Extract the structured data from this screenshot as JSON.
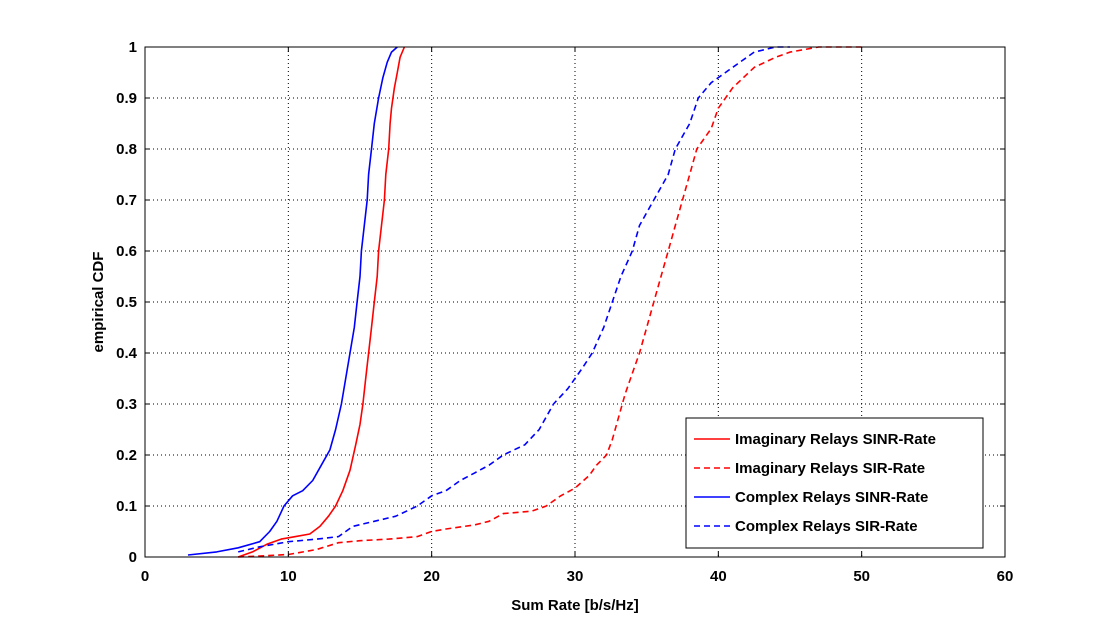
{
  "chart_data": {
    "type": "line",
    "title": "",
    "xlabel": "Sum Rate [b/s/Hz]",
    "ylabel": "empirical CDF",
    "xlim": [
      0,
      60
    ],
    "ylim": [
      0,
      1
    ],
    "xticks": [
      "0",
      "10",
      "20",
      "30",
      "40",
      "50",
      "60"
    ],
    "yticks": [
      "0",
      "0.1",
      "0.2",
      "0.3",
      "0.4",
      "0.5",
      "0.6",
      "0.7",
      "0.8",
      "0.9",
      "1"
    ],
    "grid": true,
    "legend_position": "bottom-right",
    "series": [
      {
        "name": "Imaginary Relays SINR-Rate",
        "color": "#ff0000",
        "style": "solid",
        "points": [
          [
            6.5,
            0
          ],
          [
            7.5,
            0.01
          ],
          [
            8.5,
            0.025
          ],
          [
            9.5,
            0.035
          ],
          [
            10.5,
            0.04
          ],
          [
            11.5,
            0.045
          ],
          [
            12.2,
            0.06
          ],
          [
            12.8,
            0.08
          ],
          [
            13.3,
            0.1
          ],
          [
            13.8,
            0.13
          ],
          [
            14.3,
            0.17
          ],
          [
            14.7,
            0.22
          ],
          [
            15.0,
            0.26
          ],
          [
            15.2,
            0.3
          ],
          [
            15.4,
            0.35
          ],
          [
            15.6,
            0.4
          ],
          [
            15.8,
            0.45
          ],
          [
            16.0,
            0.5
          ],
          [
            16.2,
            0.55
          ],
          [
            16.3,
            0.6
          ],
          [
            16.5,
            0.65
          ],
          [
            16.7,
            0.7
          ],
          [
            16.8,
            0.75
          ],
          [
            17.0,
            0.8
          ],
          [
            17.1,
            0.85
          ],
          [
            17.2,
            0.88
          ],
          [
            17.4,
            0.92
          ],
          [
            17.6,
            0.95
          ],
          [
            17.8,
            0.98
          ],
          [
            18.1,
            1
          ]
        ]
      },
      {
        "name": "Imaginary Relays SIR-Rate",
        "color": "#ff0000",
        "style": "dashed",
        "points": [
          [
            6.5,
            0
          ],
          [
            8,
            0.002
          ],
          [
            10,
            0.005
          ],
          [
            12,
            0.015
          ],
          [
            13.5,
            0.028
          ],
          [
            15,
            0.032
          ],
          [
            17,
            0.035
          ],
          [
            19,
            0.04
          ],
          [
            20,
            0.05
          ],
          [
            21,
            0.055
          ],
          [
            23,
            0.063
          ],
          [
            24,
            0.07
          ],
          [
            25,
            0.085
          ],
          [
            27,
            0.09
          ],
          [
            28,
            0.1
          ],
          [
            29,
            0.12
          ],
          [
            30,
            0.135
          ],
          [
            31,
            0.16
          ],
          [
            31.5,
            0.18
          ],
          [
            32.2,
            0.2
          ],
          [
            32.6,
            0.23
          ],
          [
            33,
            0.27
          ],
          [
            33.5,
            0.32
          ],
          [
            34,
            0.36
          ],
          [
            34.5,
            0.4
          ],
          [
            35,
            0.45
          ],
          [
            35.5,
            0.5
          ],
          [
            36,
            0.55
          ],
          [
            36.5,
            0.6
          ],
          [
            37,
            0.65
          ],
          [
            37.5,
            0.7
          ],
          [
            38,
            0.75
          ],
          [
            38.5,
            0.8
          ],
          [
            39.5,
            0.84
          ],
          [
            40,
            0.88
          ],
          [
            41,
            0.92
          ],
          [
            42.5,
            0.96
          ],
          [
            44,
            0.98
          ],
          [
            45,
            0.99
          ],
          [
            47,
            1
          ],
          [
            50,
            1
          ]
        ]
      },
      {
        "name": "Complex Relays SINR-Rate",
        "color": "#0000ff",
        "style": "solid",
        "points": [
          [
            3,
            0.004
          ],
          [
            5,
            0.01
          ],
          [
            6.5,
            0.018
          ],
          [
            8,
            0.03
          ],
          [
            8.7,
            0.05
          ],
          [
            9.2,
            0.07
          ],
          [
            9.7,
            0.1
          ],
          [
            10.3,
            0.12
          ],
          [
            11,
            0.13
          ],
          [
            11.7,
            0.15
          ],
          [
            12.3,
            0.18
          ],
          [
            12.9,
            0.21
          ],
          [
            13.3,
            0.25
          ],
          [
            13.7,
            0.3
          ],
          [
            14.0,
            0.35
          ],
          [
            14.3,
            0.4
          ],
          [
            14.6,
            0.45
          ],
          [
            14.8,
            0.5
          ],
          [
            15.0,
            0.55
          ],
          [
            15.1,
            0.6
          ],
          [
            15.3,
            0.65
          ],
          [
            15.5,
            0.7
          ],
          [
            15.6,
            0.75
          ],
          [
            15.8,
            0.8
          ],
          [
            16.0,
            0.85
          ],
          [
            16.3,
            0.9
          ],
          [
            16.6,
            0.94
          ],
          [
            16.9,
            0.97
          ],
          [
            17.2,
            0.99
          ],
          [
            17.6,
            1
          ]
        ]
      },
      {
        "name": "Complex Relays SIR-Rate",
        "color": "#0000ff",
        "style": "dashed",
        "points": [
          [
            6.5,
            0.01
          ],
          [
            8,
            0.02
          ],
          [
            10,
            0.03
          ],
          [
            12,
            0.035
          ],
          [
            13.5,
            0.04
          ],
          [
            14.5,
            0.06
          ],
          [
            16,
            0.07
          ],
          [
            17.5,
            0.08
          ],
          [
            19,
            0.1
          ],
          [
            20,
            0.12
          ],
          [
            21,
            0.13
          ],
          [
            22,
            0.15
          ],
          [
            23,
            0.165
          ],
          [
            24,
            0.18
          ],
          [
            25,
            0.2
          ],
          [
            26.5,
            0.22
          ],
          [
            27.5,
            0.25
          ],
          [
            28.5,
            0.3
          ],
          [
            29.5,
            0.33
          ],
          [
            30.5,
            0.37
          ],
          [
            31.2,
            0.4
          ],
          [
            32,
            0.45
          ],
          [
            32.6,
            0.5
          ],
          [
            33.2,
            0.55
          ],
          [
            34,
            0.6
          ],
          [
            34.5,
            0.65
          ],
          [
            35.5,
            0.7
          ],
          [
            36.5,
            0.75
          ],
          [
            37,
            0.8
          ],
          [
            38,
            0.85
          ],
          [
            38.6,
            0.9
          ],
          [
            39.5,
            0.93
          ],
          [
            40.5,
            0.95
          ],
          [
            41.5,
            0.97
          ],
          [
            42.5,
            0.99
          ],
          [
            44,
            1
          ],
          [
            45,
            1
          ]
        ]
      }
    ]
  }
}
